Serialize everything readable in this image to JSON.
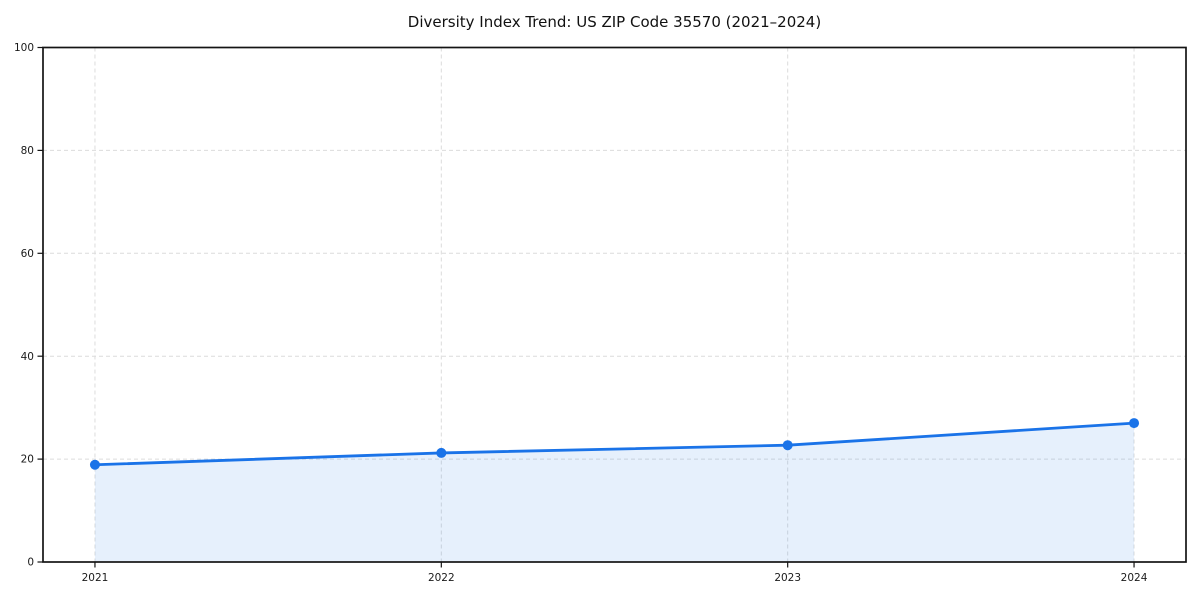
{
  "chart_data": {
    "type": "area",
    "title": "Diversity Index Trend: US ZIP Code 35570 (2021–2024)",
    "categories": [
      "2021",
      "2022",
      "2023",
      "2024"
    ],
    "values": [
      18.9,
      21.2,
      22.7,
      27.0
    ],
    "xlabel": "",
    "ylabel": "",
    "ylim": [
      0,
      100
    ],
    "yticks": [
      0,
      20,
      40,
      60,
      80,
      100
    ],
    "grid": "dashed",
    "legend": "none",
    "colors": {
      "line": "#1a73e8",
      "marker": "#1a73e8",
      "fill_rgba": "rgba(26,115,232,0.11)",
      "grid": "#dcdcdc",
      "spine": "#141414",
      "tick_label": "#1a1a1a",
      "title": "#111111",
      "background": "#ffffff"
    }
  }
}
